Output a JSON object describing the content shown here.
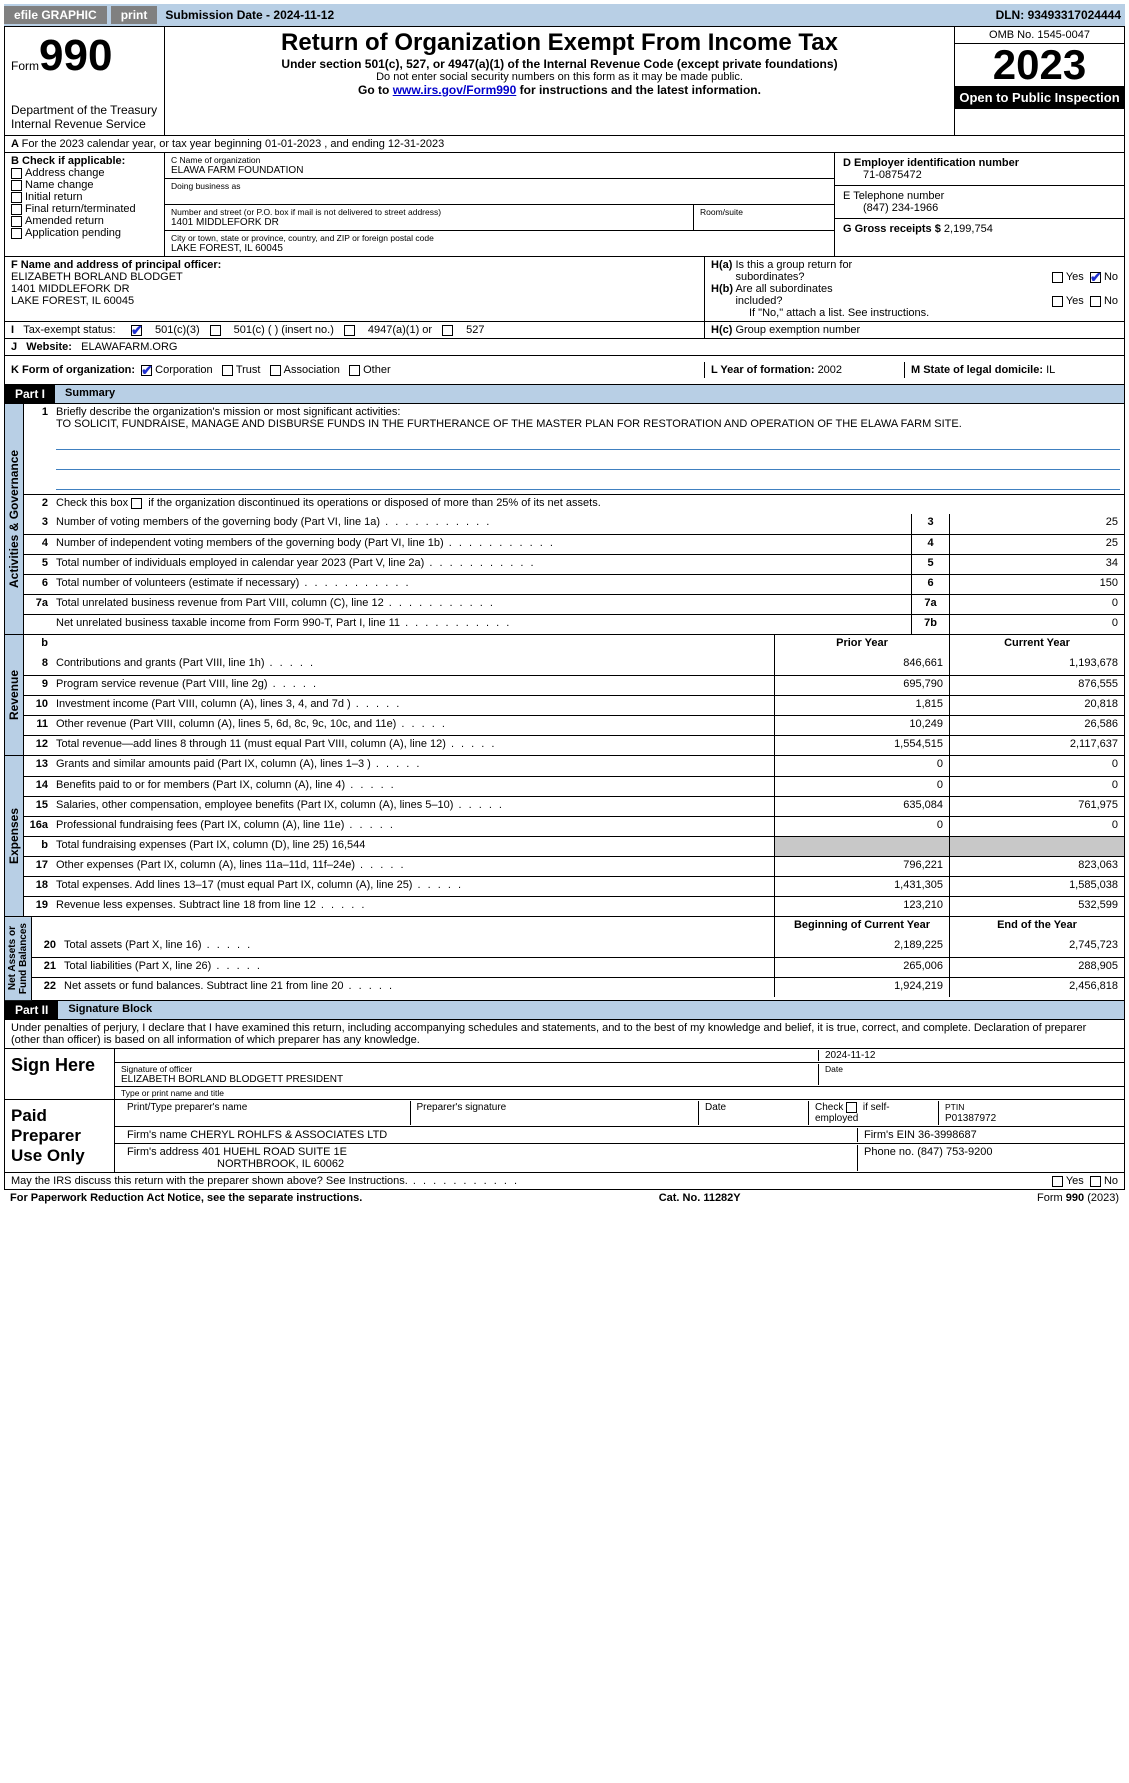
{
  "topbar": {
    "efile": "efile GRAPHIC",
    "print": "print",
    "subdate_lbl": "Submission Date - ",
    "subdate": "2024-11-12",
    "dln_lbl": "DLN: ",
    "dln": "93493317024444"
  },
  "header": {
    "form_lbl": "Form",
    "form_no": "990",
    "dept": "Department of the Treasury\nInternal Revenue Service",
    "title": "Return of Organization Exempt From Income Tax",
    "sub": "Under section 501(c), 527, or 4947(a)(1) of the Internal Revenue Code (except private foundations)",
    "ssn": "Do not enter social security numbers on this form as it may be made public.",
    "goto_pre": "Go to ",
    "goto_link": "www.irs.gov/Form990",
    "goto_post": " for instructions and the latest information.",
    "omb": "OMB No. 1545-0047",
    "year": "2023",
    "open": "Open to Public Inspection"
  },
  "period": {
    "a": "A",
    "text": "For the 2023 calendar year, or tax year beginning 01-01-2023   , and ending 12-31-2023"
  },
  "boxB": {
    "hdr": "B Check if applicable:",
    "opts": [
      "Address change",
      "Name change",
      "Initial return",
      "Final return/terminated",
      "Amended return",
      "Application pending"
    ]
  },
  "boxC": {
    "name_lbl": "C Name of organization",
    "name": "ELAWA FARM FOUNDATION",
    "dba_lbl": "Doing business as",
    "addr_lbl": "Number and street (or P.O. box if mail is not delivered to street address)",
    "room_lbl": "Room/suite",
    "addr": "1401 MIDDLEFORK DR",
    "city_lbl": "City or town, state or province, country, and ZIP or foreign postal code",
    "city": "LAKE FOREST, IL  60045"
  },
  "boxD": {
    "lbl": "D Employer identification number",
    "val": "71-0875472"
  },
  "boxE": {
    "lbl": "E Telephone number",
    "val": "(847) 234-1966"
  },
  "boxG": {
    "lbl": "G Gross receipts $ ",
    "val": "2,199,754"
  },
  "boxF": {
    "lbl": "F  Name and address of principal officer:",
    "name": "ELIZABETH BORLAND BLODGET",
    "addr1": "1401 MIDDLEFORK DR",
    "addr2": "LAKE FOREST, IL  60045"
  },
  "boxH": {
    "ha": "H(a)  Is this a group return for subordinates?",
    "hb": "H(b)  Are all subordinates included?",
    "hb_note": "If \"No,\" attach a list. See instructions.",
    "hc": "H(c)  Group exemption number "
  },
  "boxI": {
    "lbl": "Tax-exempt status:",
    "o1": "501(c)(3)",
    "o2": "501(c) (   ) (insert no.)",
    "o3": "4947(a)(1) or",
    "o4": "527"
  },
  "boxJ": {
    "lbl": "Website: ",
    "val": "ELAWAFARM.ORG"
  },
  "boxK": {
    "lbl": "K Form of organization:",
    "o1": "Corporation",
    "o2": "Trust",
    "o3": "Association",
    "o4": "Other"
  },
  "boxL": {
    "lbl": "L Year of formation: ",
    "val": "2002"
  },
  "boxM": {
    "lbl": "M State of legal domicile: ",
    "val": "IL"
  },
  "part1": {
    "hdr": "Part I",
    "title": "Summary"
  },
  "summary": {
    "l1_lbl": "Briefly describe the organization's mission or most significant activities:",
    "l1_txt": "TO SOLICIT, FUNDRAISE, MANAGE AND DISBURSE FUNDS IN THE FURTHERANCE OF THE MASTER PLAN FOR RESTORATION AND OPERATION OF THE ELAWA FARM SITE.",
    "l2": "Check this box ☐ if the organization discontinued its operations or disposed of more than 25% of its net assets.",
    "rows_ag": [
      {
        "n": "3",
        "d": "Number of voting members of the governing body (Part VI, line 1a)",
        "b": "3",
        "v": "25"
      },
      {
        "n": "4",
        "d": "Number of independent voting members of the governing body (Part VI, line 1b)",
        "b": "4",
        "v": "25"
      },
      {
        "n": "5",
        "d": "Total number of individuals employed in calendar year 2023 (Part V, line 2a)",
        "b": "5",
        "v": "34"
      },
      {
        "n": "6",
        "d": "Total number of volunteers (estimate if necessary)",
        "b": "6",
        "v": "150"
      },
      {
        "n": "7a",
        "d": "Total unrelated business revenue from Part VIII, column (C), line 12",
        "b": "7a",
        "v": "0"
      },
      {
        "n": "",
        "d": "Net unrelated business taxable income from Form 990-T, Part I, line 11",
        "b": "7b",
        "v": "0"
      }
    ],
    "yr_prior": "Prior Year",
    "yr_curr": "Current Year",
    "rows_rev": [
      {
        "n": "8",
        "d": "Contributions and grants (Part VIII, line 1h)",
        "p": "846,661",
        "c": "1,193,678"
      },
      {
        "n": "9",
        "d": "Program service revenue (Part VIII, line 2g)",
        "p": "695,790",
        "c": "876,555"
      },
      {
        "n": "10",
        "d": "Investment income (Part VIII, column (A), lines 3, 4, and 7d )",
        "p": "1,815",
        "c": "20,818"
      },
      {
        "n": "11",
        "d": "Other revenue (Part VIII, column (A), lines 5, 6d, 8c, 9c, 10c, and 11e)",
        "p": "10,249",
        "c": "26,586"
      },
      {
        "n": "12",
        "d": "Total revenue—add lines 8 through 11 (must equal Part VIII, column (A), line 12)",
        "p": "1,554,515",
        "c": "2,117,637"
      }
    ],
    "rows_exp": [
      {
        "n": "13",
        "d": "Grants and similar amounts paid (Part IX, column (A), lines 1–3 )",
        "p": "0",
        "c": "0"
      },
      {
        "n": "14",
        "d": "Benefits paid to or for members (Part IX, column (A), line 4)",
        "p": "0",
        "c": "0"
      },
      {
        "n": "15",
        "d": "Salaries, other compensation, employee benefits (Part IX, column (A), lines 5–10)",
        "p": "635,084",
        "c": "761,975"
      },
      {
        "n": "16a",
        "d": "Professional fundraising fees (Part IX, column (A), line 11e)",
        "p": "0",
        "c": "0"
      },
      {
        "n": "b",
        "d": "Total fundraising expenses (Part IX, column (D), line 25) 16,544",
        "p": "",
        "c": "",
        "gray": true
      },
      {
        "n": "17",
        "d": "Other expenses (Part IX, column (A), lines 11a–11d, 11f–24e)",
        "p": "796,221",
        "c": "823,063"
      },
      {
        "n": "18",
        "d": "Total expenses. Add lines 13–17 (must equal Part IX, column (A), line 25)",
        "p": "1,431,305",
        "c": "1,585,038"
      },
      {
        "n": "19",
        "d": "Revenue less expenses. Subtract line 18 from line 12",
        "p": "123,210",
        "c": "532,599"
      }
    ],
    "yr_beg": "Beginning of Current Year",
    "yr_end": "End of the Year",
    "rows_na": [
      {
        "n": "20",
        "d": "Total assets (Part X, line 16)",
        "p": "2,189,225",
        "c": "2,745,723"
      },
      {
        "n": "21",
        "d": "Total liabilities (Part X, line 26)",
        "p": "265,006",
        "c": "288,905"
      },
      {
        "n": "22",
        "d": "Net assets or fund balances. Subtract line 21 from line 20",
        "p": "1,924,219",
        "c": "2,456,818"
      }
    ]
  },
  "vtabs": {
    "ag": "Activities & Governance",
    "rev": "Revenue",
    "exp": "Expenses",
    "na": "Net Assets or\nFund Balances"
  },
  "part2": {
    "hdr": "Part II",
    "title": "Signature Block"
  },
  "penalty": "Under penalties of perjury, I declare that I have examined this return, including accompanying schedules and statements, and to the best of my knowledge and belief, it is true, correct, and complete. Declaration of preparer (other than officer) is based on all information of which preparer has any knowledge.",
  "sign": {
    "here": "Sign Here",
    "date": "2024-11-12",
    "sig_lbl": "Signature of officer",
    "date_lbl": "Date",
    "name": "ELIZABETH BORLAND BLODGETT PRESIDENT",
    "type_lbl": "Type or print name and title"
  },
  "prep": {
    "hdr": "Paid Preparer Use Only",
    "c1": "Print/Type preparer's name",
    "c2": "Preparer's signature",
    "c3": "Date",
    "c4_pre": "Check ",
    "c4_post": " if self-employed",
    "c5_lbl": "PTIN",
    "c5": "P01387972",
    "firm_lbl": "Firm's name     ",
    "firm": "CHERYL ROHLFS & ASSOCIATES LTD",
    "ein_lbl": "Firm's EIN ",
    "ein": "36-3998687",
    "addr_lbl": "Firm's address ",
    "addr1": "401 HUEHL ROAD SUITE 1E",
    "addr2": "NORTHBROOK, IL  60062",
    "phone_lbl": "Phone no. ",
    "phone": "(847) 753-9200"
  },
  "discuss": "May the IRS discuss this return with the preparer shown above? See Instructions.",
  "footer": {
    "l": "For Paperwork Reduction Act Notice, see the separate instructions.",
    "m": "Cat. No. 11282Y",
    "r": "Form 990 (2023)"
  },
  "yesno": {
    "yes": "Yes",
    "no": "No"
  }
}
